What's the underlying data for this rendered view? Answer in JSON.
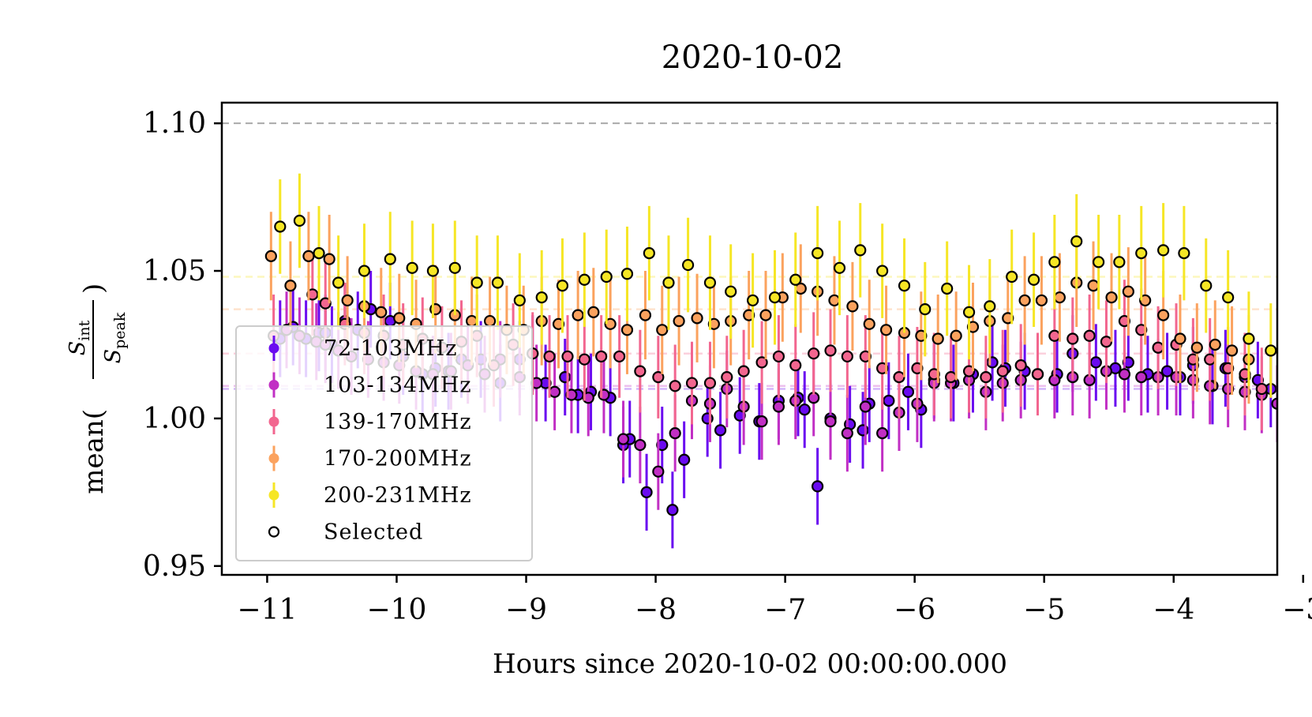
{
  "chart_data": {
    "type": "scatter",
    "title": "2020-10-02",
    "xlabel": "Hours since 2020-10-02 00:00:00.000",
    "ylabel_main": "mean(",
    "ylabel_num": "S",
    "ylabel_num_sub": "int",
    "ylabel_den": "S",
    "ylabel_den_sub": "peak",
    "ylabel_close": ")",
    "xlim": [
      -11.35,
      -3.2
    ],
    "ylim": [
      0.947,
      1.107
    ],
    "xticks": [
      -11,
      -10,
      -9,
      -8,
      -7,
      -6,
      -5,
      -4,
      -3
    ],
    "xtick_labels": [
      "−11",
      "−10",
      "−9",
      "−8",
      "−7",
      "−6",
      "−5",
      "−4",
      "−3"
    ],
    "yticks": [
      0.95,
      1.0,
      1.05,
      1.1
    ],
    "ytick_labels": [
      "0.95",
      "1.00",
      "1.05",
      "1.10"
    ],
    "reference_line": {
      "y": 1.1,
      "color": "#aaaaaa"
    },
    "legend": {
      "placement": "lower-left",
      "entries": [
        "72-103MHz",
        "103-134MHz",
        "139-170MHz",
        "170-200MHz",
        "200-231MHz",
        "Selected"
      ]
    },
    "selected_marker": "black-outline-circle",
    "series": [
      {
        "name": "72-103MHz",
        "color": "#6a0bf0",
        "mean_line": 1.01,
        "x": [
          -10.9,
          -10.8,
          -10.7,
          -10.6,
          -10.55,
          -10.5,
          -10.4,
          -10.3,
          -10.2,
          -10.05,
          -9.95,
          -9.8,
          -9.7,
          -9.6,
          -9.5,
          -9.35,
          -9.2,
          -9.05,
          -8.95,
          -8.85,
          -8.7,
          -8.6,
          -8.5,
          -8.35,
          -8.25,
          -8.2,
          -8.07,
          -7.95,
          -7.87,
          -7.78,
          -7.6,
          -7.5,
          -7.35,
          -7.2,
          -7.05,
          -6.9,
          -6.85,
          -6.75,
          -6.65,
          -6.5,
          -6.4,
          -6.35,
          -6.2,
          -6.05,
          -5.95,
          -5.85,
          -5.7,
          -5.55,
          -5.4,
          -5.3,
          -5.15,
          -5.05,
          -4.9,
          -4.78,
          -4.6,
          -4.45,
          -4.35,
          -4.2,
          -4.05,
          -3.95,
          -3.85,
          -3.7,
          -3.6,
          -3.45,
          -3.35,
          -3.25
        ],
        "y": [
          1.027,
          1.031,
          1.027,
          1.029,
          1.029,
          1.025,
          1.033,
          1.03,
          1.037,
          1.033,
          1.021,
          1.015,
          1.017,
          1.016,
          1.02,
          1.02,
          1.012,
          1.02,
          1.022,
          1.012,
          1.014,
          1.008,
          1.009,
          1.007,
          0.991,
          0.993,
          0.975,
          0.991,
          0.969,
          0.986,
          1.0,
          0.996,
          1.001,
          0.999,
          1.006,
          1.007,
          1.003,
          0.977,
          1.0,
          0.998,
          0.996,
          1.005,
          1.006,
          1.009,
          1.003,
          1.013,
          1.012,
          1.015,
          1.019,
          1.017,
          1.016,
          1.015,
          1.015,
          1.022,
          1.019,
          1.017,
          1.019,
          1.015,
          1.016,
          1.014,
          1.018,
          1.011,
          1.017,
          1.014,
          1.013,
          1.01
        ],
        "err": [
          0.013,
          0.013,
          0.013,
          0.013,
          0.013,
          0.013,
          0.013,
          0.013,
          0.013,
          0.013,
          0.013,
          0.013,
          0.013,
          0.013,
          0.013,
          0.013,
          0.013,
          0.013,
          0.013,
          0.013,
          0.013,
          0.013,
          0.013,
          0.013,
          0.013,
          0.013,
          0.013,
          0.013,
          0.013,
          0.013,
          0.013,
          0.013,
          0.013,
          0.013,
          0.013,
          0.013,
          0.013,
          0.013,
          0.013,
          0.013,
          0.013,
          0.013,
          0.013,
          0.013,
          0.013,
          0.013,
          0.013,
          0.013,
          0.013,
          0.013,
          0.013,
          0.013,
          0.013,
          0.013,
          0.013,
          0.013,
          0.013,
          0.013,
          0.013,
          0.013,
          0.013,
          0.013,
          0.013,
          0.013,
          0.013,
          0.013
        ]
      },
      {
        "name": "103-134MHz",
        "color": "#c12fc4",
        "mean_line": 1.011,
        "x": [
          -10.85,
          -10.75,
          -10.62,
          -10.55,
          -10.45,
          -10.35,
          -10.22,
          -10.1,
          -9.98,
          -9.85,
          -9.72,
          -9.58,
          -9.45,
          -9.32,
          -9.2,
          -9.05,
          -8.92,
          -8.78,
          -8.65,
          -8.52,
          -8.4,
          -8.25,
          -8.12,
          -7.98,
          -7.85,
          -7.72,
          -7.58,
          -7.45,
          -7.32,
          -7.18,
          -7.05,
          -6.92,
          -6.78,
          -6.65,
          -6.52,
          -6.38,
          -6.25,
          -6.12,
          -5.98,
          -5.85,
          -5.72,
          -5.58,
          -5.45,
          -5.32,
          -5.18,
          -5.05,
          -4.92,
          -4.78,
          -4.65,
          -4.52,
          -4.38,
          -4.25,
          -4.12,
          -3.98,
          -3.85,
          -3.72,
          -3.58,
          -3.45,
          -3.32,
          -3.2
        ],
        "y": [
          1.03,
          1.028,
          1.026,
          1.025,
          1.023,
          1.021,
          1.02,
          1.019,
          1.018,
          1.016,
          1.015,
          1.016,
          1.018,
          1.015,
          1.02,
          1.014,
          1.012,
          1.009,
          1.008,
          1.007,
          1.008,
          0.993,
          0.991,
          0.982,
          0.995,
          1.006,
          1.005,
          1.01,
          1.004,
          0.999,
          1.004,
          1.006,
          1.007,
          0.999,
          0.995,
          1.004,
          0.995,
          1.002,
          1.005,
          1.012,
          1.012,
          1.013,
          1.009,
          1.012,
          1.013,
          1.015,
          1.013,
          1.014,
          1.013,
          1.016,
          1.015,
          1.014,
          1.014,
          1.014,
          1.013,
          1.011,
          1.01,
          1.009,
          1.008,
          1.005
        ],
        "err": [
          0.013,
          0.013,
          0.013,
          0.013,
          0.013,
          0.013,
          0.013,
          0.013,
          0.013,
          0.013,
          0.013,
          0.013,
          0.013,
          0.013,
          0.013,
          0.013,
          0.013,
          0.013,
          0.013,
          0.013,
          0.013,
          0.013,
          0.013,
          0.013,
          0.013,
          0.013,
          0.013,
          0.013,
          0.013,
          0.013,
          0.013,
          0.013,
          0.013,
          0.013,
          0.013,
          0.013,
          0.013,
          0.013,
          0.013,
          0.013,
          0.013,
          0.013,
          0.013,
          0.013,
          0.013,
          0.013,
          0.013,
          0.013,
          0.013,
          0.013,
          0.013,
          0.013,
          0.013,
          0.013,
          0.013,
          0.013,
          0.013,
          0.013,
          0.013,
          0.013
        ]
      },
      {
        "name": "139-170MHz",
        "color": "#f2668f",
        "mean_line": 1.022,
        "x": [
          -10.95,
          -10.65,
          -10.55,
          -10.4,
          -10.25,
          -10.1,
          -9.95,
          -9.8,
          -9.65,
          -9.5,
          -9.38,
          -9.25,
          -9.1,
          -8.95,
          -8.82,
          -8.68,
          -8.55,
          -8.42,
          -8.28,
          -8.12,
          -7.98,
          -7.85,
          -7.72,
          -7.58,
          -7.45,
          -7.32,
          -7.18,
          -7.05,
          -6.92,
          -6.78,
          -6.65,
          -6.52,
          -6.38,
          -6.25,
          -6.12,
          -5.98,
          -5.85,
          -5.72,
          -5.58,
          -5.45,
          -5.32,
          -5.18,
          -5.05,
          -4.92,
          -4.78,
          -4.65,
          -4.52,
          -4.38,
          -4.25,
          -4.12,
          -3.98,
          -3.85,
          -3.72,
          -3.58,
          -3.45,
          -3.32
        ],
        "y": [
          1.028,
          1.042,
          1.039,
          1.032,
          1.029,
          1.028,
          1.025,
          1.027,
          1.024,
          1.026,
          1.028,
          1.018,
          1.025,
          1.022,
          1.021,
          1.021,
          1.02,
          1.021,
          1.021,
          1.016,
          1.014,
          1.011,
          1.012,
          1.012,
          1.014,
          1.016,
          1.019,
          1.021,
          1.018,
          1.022,
          1.023,
          1.021,
          1.021,
          1.017,
          1.014,
          1.017,
          1.015,
          1.014,
          1.016,
          1.014,
          1.016,
          1.018,
          1.015,
          1.028,
          1.027,
          1.028,
          1.026,
          1.033,
          1.03,
          1.024,
          1.025,
          1.02,
          1.02,
          1.017,
          1.015,
          1.01
        ],
        "err": [
          0.014,
          0.014,
          0.014,
          0.014,
          0.014,
          0.014,
          0.014,
          0.014,
          0.014,
          0.014,
          0.014,
          0.014,
          0.014,
          0.014,
          0.014,
          0.014,
          0.014,
          0.014,
          0.014,
          0.014,
          0.014,
          0.014,
          0.014,
          0.014,
          0.014,
          0.014,
          0.014,
          0.014,
          0.014,
          0.014,
          0.014,
          0.014,
          0.014,
          0.014,
          0.014,
          0.014,
          0.014,
          0.014,
          0.014,
          0.014,
          0.014,
          0.014,
          0.014,
          0.014,
          0.014,
          0.014,
          0.014,
          0.014,
          0.014,
          0.014,
          0.014,
          0.014,
          0.014,
          0.014,
          0.014,
          0.014
        ]
      },
      {
        "name": "170-200MHz",
        "color": "#fba25e",
        "mean_line": 1.037,
        "x": [
          -10.97,
          -10.82,
          -10.68,
          -10.52,
          -10.38,
          -10.25,
          -10.12,
          -9.98,
          -9.85,
          -9.7,
          -9.55,
          -9.42,
          -9.28,
          -9.15,
          -9.02,
          -8.88,
          -8.75,
          -8.6,
          -8.48,
          -8.35,
          -8.22,
          -8.08,
          -7.95,
          -7.82,
          -7.68,
          -7.55,
          -7.42,
          -7.28,
          -7.15,
          -7.02,
          -6.88,
          -6.75,
          -6.62,
          -6.48,
          -6.35,
          -6.22,
          -6.08,
          -5.95,
          -5.82,
          -5.68,
          -5.55,
          -5.42,
          -5.28,
          -5.15,
          -5.02,
          -4.88,
          -4.75,
          -4.62,
          -4.48,
          -4.35,
          -4.22,
          -4.08,
          -3.95,
          -3.82,
          -3.68,
          -3.55,
          -3.42
        ],
        "y": [
          1.055,
          1.045,
          1.055,
          1.054,
          1.04,
          1.038,
          1.036,
          1.034,
          1.032,
          1.037,
          1.035,
          1.033,
          1.033,
          1.03,
          1.03,
          1.033,
          1.032,
          1.035,
          1.036,
          1.032,
          1.03,
          1.035,
          1.03,
          1.033,
          1.034,
          1.032,
          1.033,
          1.035,
          1.035,
          1.041,
          1.044,
          1.043,
          1.04,
          1.038,
          1.032,
          1.03,
          1.029,
          1.028,
          1.027,
          1.028,
          1.031,
          1.033,
          1.034,
          1.04,
          1.04,
          1.041,
          1.046,
          1.045,
          1.041,
          1.043,
          1.04,
          1.035,
          1.027,
          1.024,
          1.025,
          1.023,
          1.02
        ],
        "err": [
          0.015,
          0.015,
          0.015,
          0.015,
          0.015,
          0.015,
          0.015,
          0.015,
          0.015,
          0.015,
          0.015,
          0.015,
          0.015,
          0.015,
          0.015,
          0.015,
          0.015,
          0.015,
          0.015,
          0.015,
          0.015,
          0.015,
          0.015,
          0.015,
          0.015,
          0.015,
          0.015,
          0.015,
          0.015,
          0.015,
          0.015,
          0.015,
          0.015,
          0.015,
          0.015,
          0.015,
          0.015,
          0.015,
          0.015,
          0.015,
          0.015,
          0.015,
          0.015,
          0.015,
          0.015,
          0.015,
          0.015,
          0.015,
          0.015,
          0.015,
          0.015,
          0.015,
          0.015,
          0.015,
          0.015,
          0.015,
          0.015
        ]
      },
      {
        "name": "200-231MHz",
        "color": "#f6e625",
        "mean_line": 1.048,
        "x": [
          -10.9,
          -10.75,
          -10.6,
          -10.45,
          -10.25,
          -10.05,
          -9.88,
          -9.72,
          -9.55,
          -9.38,
          -9.22,
          -9.05,
          -8.88,
          -8.72,
          -8.55,
          -8.38,
          -8.22,
          -8.05,
          -7.9,
          -7.75,
          -7.58,
          -7.42,
          -7.25,
          -7.08,
          -6.92,
          -6.75,
          -6.58,
          -6.42,
          -6.25,
          -6.08,
          -5.92,
          -5.75,
          -5.58,
          -5.42,
          -5.25,
          -5.08,
          -4.92,
          -4.75,
          -4.58,
          -4.42,
          -4.25,
          -4.08,
          -3.92,
          -3.75,
          -3.58,
          -3.42,
          -3.25
        ],
        "y": [
          1.065,
          1.067,
          1.056,
          1.046,
          1.05,
          1.054,
          1.051,
          1.05,
          1.051,
          1.046,
          1.046,
          1.04,
          1.041,
          1.045,
          1.047,
          1.048,
          1.049,
          1.056,
          1.046,
          1.052,
          1.046,
          1.043,
          1.04,
          1.041,
          1.047,
          1.056,
          1.051,
          1.057,
          1.05,
          1.045,
          1.037,
          1.044,
          1.036,
          1.038,
          1.048,
          1.047,
          1.053,
          1.06,
          1.053,
          1.053,
          1.056,
          1.057,
          1.056,
          1.045,
          1.041,
          1.027,
          1.023
        ],
        "err": [
          0.016,
          0.016,
          0.016,
          0.016,
          0.016,
          0.016,
          0.016,
          0.016,
          0.016,
          0.016,
          0.016,
          0.016,
          0.016,
          0.016,
          0.016,
          0.016,
          0.016,
          0.016,
          0.016,
          0.016,
          0.016,
          0.016,
          0.016,
          0.016,
          0.016,
          0.016,
          0.016,
          0.016,
          0.016,
          0.016,
          0.016,
          0.016,
          0.016,
          0.016,
          0.016,
          0.016,
          0.016,
          0.016,
          0.016,
          0.016,
          0.016,
          0.016,
          0.016,
          0.016,
          0.016,
          0.016,
          0.016
        ]
      }
    ]
  }
}
